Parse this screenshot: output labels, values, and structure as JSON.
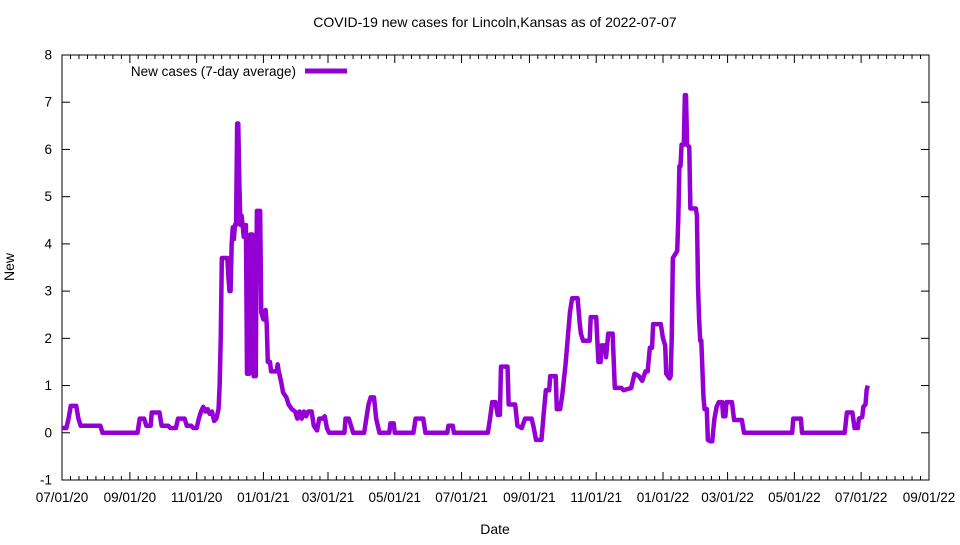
{
  "chart_data": {
    "type": "line",
    "title": "COVID-19 new cases for Lincoln,Kansas as of 2022-07-07",
    "xlabel": "Date",
    "ylabel": "New",
    "legend_label": "New cases (7-day average)",
    "line_color": "#9400d3",
    "axis_color": "#000000",
    "background_color": "#ffffff",
    "ylim": [
      -1,
      8
    ],
    "y_ticks": [
      -1,
      0,
      1,
      2,
      3,
      4,
      5,
      6,
      7,
      8
    ],
    "x_tick_labels": [
      "07/01/20",
      "09/01/20",
      "11/01/20",
      "01/01/21",
      "03/01/21",
      "05/01/21",
      "07/01/21",
      "09/01/21",
      "11/01/21",
      "01/01/22",
      "03/01/22",
      "05/01/22",
      "07/01/22",
      "09/01/22"
    ],
    "x_tick_days": [
      0,
      62,
      123,
      184,
      243,
      304,
      365,
      427,
      488,
      549,
      608,
      669,
      730,
      792
    ],
    "x_range_days": [
      0,
      792
    ],
    "x_start_date": "07/01/20",
    "x_minor_divisions": 8,
    "grid": false,
    "legend_position": "top-left-inside",
    "series": [
      {
        "name": "New cases (7-day average)",
        "color": "#9400d3",
        "points_format": "[days_since_2020-07-01, new_cases_7day_avg]",
        "points": [
          [
            0,
            0.1
          ],
          [
            4,
            0.1
          ],
          [
            6,
            0.3
          ],
          [
            8,
            0.57
          ],
          [
            13,
            0.57
          ],
          [
            15,
            0.3
          ],
          [
            17,
            0.15
          ],
          [
            21,
            0.15
          ],
          [
            35,
            0.15
          ],
          [
            37,
            0
          ],
          [
            69,
            0
          ],
          [
            71,
            0.3
          ],
          [
            75,
            0.3
          ],
          [
            77,
            0.15
          ],
          [
            81,
            0.15
          ],
          [
            82,
            0.43
          ],
          [
            89,
            0.43
          ],
          [
            91,
            0.15
          ],
          [
            97,
            0.15
          ],
          [
            99,
            0.1
          ],
          [
            104,
            0.1
          ],
          [
            106,
            0.3
          ],
          [
            112,
            0.3
          ],
          [
            114,
            0.15
          ],
          [
            118,
            0.15
          ],
          [
            120,
            0.1
          ],
          [
            123,
            0.1
          ],
          [
            125,
            0.3
          ],
          [
            127,
            0.45
          ],
          [
            129,
            0.55
          ],
          [
            131,
            0.45
          ],
          [
            133,
            0.5
          ],
          [
            135,
            0.4
          ],
          [
            137,
            0.45
          ],
          [
            139,
            0.25
          ],
          [
            141,
            0.3
          ],
          [
            143,
            0.5
          ],
          [
            144,
            1.0
          ],
          [
            145,
            2.0
          ],
          [
            146,
            3.7
          ],
          [
            151,
            3.7
          ],
          [
            152,
            3.3
          ],
          [
            153,
            3.0
          ],
          [
            154,
            3.0
          ],
          [
            155,
            4.0
          ],
          [
            156,
            4.35
          ],
          [
            157,
            4.1
          ],
          [
            158,
            4.4
          ],
          [
            159,
            4.4
          ],
          [
            160,
            6.55
          ],
          [
            161,
            6.55
          ],
          [
            162,
            5.3
          ],
          [
            163,
            4.4
          ],
          [
            164,
            4.6
          ],
          [
            165,
            4.4
          ],
          [
            166,
            4.15
          ],
          [
            167,
            4.15
          ],
          [
            168,
            4.4
          ],
          [
            169,
            1.25
          ],
          [
            171,
            1.25
          ],
          [
            172,
            4.2
          ],
          [
            174,
            4.2
          ],
          [
            175,
            1.2
          ],
          [
            177,
            1.2
          ],
          [
            178,
            4.7
          ],
          [
            181,
            4.7
          ],
          [
            182,
            2.55
          ],
          [
            184,
            2.4
          ],
          [
            186,
            2.6
          ],
          [
            187,
            2.3
          ],
          [
            188,
            1.5
          ],
          [
            190,
            1.5
          ],
          [
            191,
            1.3
          ],
          [
            196,
            1.3
          ],
          [
            197,
            1.45
          ],
          [
            198,
            1.3
          ],
          [
            200,
            1.1
          ],
          [
            202,
            0.85
          ],
          [
            205,
            0.75
          ],
          [
            207,
            0.6
          ],
          [
            210,
            0.5
          ],
          [
            213,
            0.45
          ],
          [
            215,
            0.3
          ],
          [
            217,
            0.45
          ],
          [
            219,
            0.3
          ],
          [
            221,
            0.45
          ],
          [
            223,
            0.35
          ],
          [
            225,
            0.45
          ],
          [
            228,
            0.45
          ],
          [
            230,
            0.15
          ],
          [
            233,
            0.05
          ],
          [
            235,
            0.3
          ],
          [
            238,
            0.3
          ],
          [
            240,
            0.35
          ],
          [
            242,
            0.1
          ],
          [
            244,
            0
          ],
          [
            258,
            0
          ],
          [
            259,
            0.3
          ],
          [
            262,
            0.3
          ],
          [
            264,
            0.15
          ],
          [
            266,
            0
          ],
          [
            276,
            0
          ],
          [
            278,
            0.3
          ],
          [
            280,
            0.6
          ],
          [
            282,
            0.75
          ],
          [
            285,
            0.75
          ],
          [
            287,
            0.3
          ],
          [
            289,
            0.1
          ],
          [
            290,
            0
          ],
          [
            299,
            0
          ],
          [
            300,
            0.2
          ],
          [
            303,
            0.2
          ],
          [
            304,
            0
          ],
          [
            321,
            0
          ],
          [
            323,
            0.3
          ],
          [
            330,
            0.3
          ],
          [
            332,
            0
          ],
          [
            352,
            0
          ],
          [
            353,
            0.15
          ],
          [
            357,
            0.15
          ],
          [
            358,
            0
          ],
          [
            389,
            0
          ],
          [
            391,
            0.3
          ],
          [
            393,
            0.65
          ],
          [
            396,
            0.65
          ],
          [
            398,
            0.38
          ],
          [
            400,
            0.38
          ],
          [
            401,
            1.4
          ],
          [
            407,
            1.4
          ],
          [
            408,
            0.6
          ],
          [
            414,
            0.6
          ],
          [
            416,
            0.15
          ],
          [
            420,
            0.1
          ],
          [
            423,
            0.3
          ],
          [
            429,
            0.3
          ],
          [
            431,
            0.1
          ],
          [
            433,
            -0.15
          ],
          [
            438,
            -0.15
          ],
          [
            440,
            0.4
          ],
          [
            442,
            0.9
          ],
          [
            445,
            0.9
          ],
          [
            446,
            1.2
          ],
          [
            451,
            1.2
          ],
          [
            452,
            0.5
          ],
          [
            455,
            0.5
          ],
          [
            457,
            0.8
          ],
          [
            460,
            1.45
          ],
          [
            462,
            2.0
          ],
          [
            464,
            2.55
          ],
          [
            466,
            2.85
          ],
          [
            471,
            2.85
          ],
          [
            473,
            2.3
          ],
          [
            474,
            2.1
          ],
          [
            476,
            1.95
          ],
          [
            482,
            1.95
          ],
          [
            483,
            2.45
          ],
          [
            488,
            2.45
          ],
          [
            490,
            1.5
          ],
          [
            492,
            1.5
          ],
          [
            493,
            1.85
          ],
          [
            496,
            1.85
          ],
          [
            497,
            1.6
          ],
          [
            499,
            2.1
          ],
          [
            503,
            2.1
          ],
          [
            505,
            0.95
          ],
          [
            511,
            0.95
          ],
          [
            513,
            0.9
          ],
          [
            520,
            0.95
          ],
          [
            523,
            1.25
          ],
          [
            527,
            1.2
          ],
          [
            530,
            1.1
          ],
          [
            533,
            1.3
          ],
          [
            535,
            1.3
          ],
          [
            537,
            1.8
          ],
          [
            539,
            1.8
          ],
          [
            540,
            2.3
          ],
          [
            547,
            2.3
          ],
          [
            549,
            2.0
          ],
          [
            551,
            1.85
          ],
          [
            552,
            1.25
          ],
          [
            555,
            1.15
          ],
          [
            556,
            1.2
          ],
          [
            557,
            2.0
          ],
          [
            558,
            3.7
          ],
          [
            562,
            3.85
          ],
          [
            563,
            4.55
          ],
          [
            564,
            5.65
          ],
          [
            565,
            5.65
          ],
          [
            566,
            6.1
          ],
          [
            568,
            6.1
          ],
          [
            569,
            7.15
          ],
          [
            570,
            7.15
          ],
          [
            571,
            6.1
          ],
          [
            573,
            6.05
          ],
          [
            574,
            4.75
          ],
          [
            579,
            4.75
          ],
          [
            580,
            4.6
          ],
          [
            581,
            3.1
          ],
          [
            582,
            2.4
          ],
          [
            583,
            1.95
          ],
          [
            584,
            1.95
          ],
          [
            585,
            1.35
          ],
          [
            586,
            0.75
          ],
          [
            587,
            0.5
          ],
          [
            589,
            0.5
          ],
          [
            590,
            -0.15
          ],
          [
            592,
            -0.18
          ],
          [
            594,
            -0.18
          ],
          [
            596,
            0.3
          ],
          [
            598,
            0.55
          ],
          [
            600,
            0.65
          ],
          [
            603,
            0.65
          ],
          [
            604,
            0.35
          ],
          [
            606,
            0.35
          ],
          [
            607,
            0.65
          ],
          [
            612,
            0.65
          ],
          [
            613,
            0.45
          ],
          [
            614,
            0.27
          ],
          [
            621,
            0.27
          ],
          [
            623,
            0
          ],
          [
            667,
            0
          ],
          [
            668,
            0.3
          ],
          [
            675,
            0.3
          ],
          [
            676,
            0
          ],
          [
            715,
            0
          ],
          [
            717,
            0.43
          ],
          [
            722,
            0.43
          ],
          [
            724,
            0.1
          ],
          [
            727,
            0.1
          ],
          [
            728,
            0.3
          ],
          [
            731,
            0.33
          ],
          [
            732,
            0.55
          ],
          [
            734,
            0.6
          ],
          [
            735,
            0.9
          ],
          [
            736,
            1.0
          ]
        ]
      }
    ]
  }
}
